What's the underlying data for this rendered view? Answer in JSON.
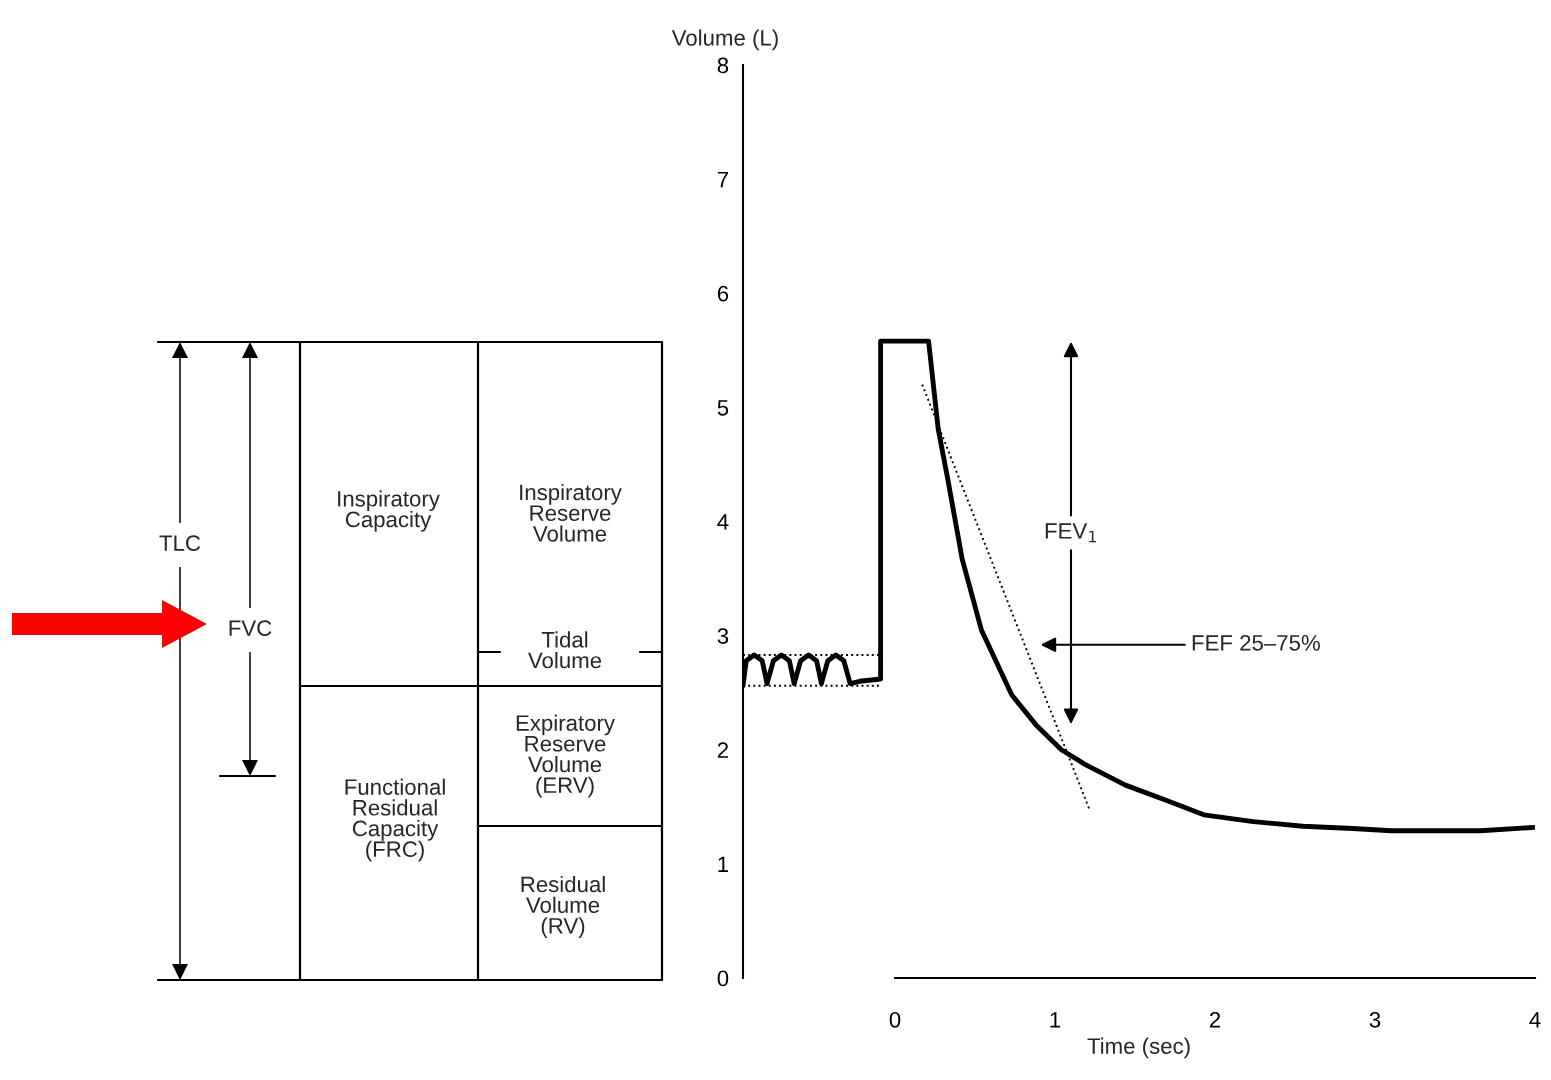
{
  "chart_data": [
    {
      "type": "other",
      "annotations": [
        "TLC",
        "FVC",
        "Inspiratory\nCapacity",
        "Inspiratory\nReserve\nVolume",
        "Tidal\nVolume",
        "Functional\nResidual\nCapacity\n(FRC)",
        "Expiratory\nReserve\nVolume\n(ERV)",
        "Residual\nVolume\n(RV)"
      ]
    },
    {
      "type": "line",
      "xlabel": "Time (sec)",
      "ylabel": "Volume (L)",
      "xlim": [
        -0.95,
        4
      ],
      "ylim": [
        0,
        8
      ],
      "xticks": [
        0,
        1,
        2,
        3,
        4
      ],
      "yticks": [
        0,
        1,
        2,
        3,
        4,
        5,
        6,
        7,
        8
      ],
      "grid": false,
      "series": [
        {
          "color": "#000000",
          "line_style": "solid",
          "x": [
            -0.95,
            -0.93,
            -0.88,
            -0.83,
            -0.8,
            -0.76,
            -0.71,
            -0.66,
            -0.63,
            -0.59,
            -0.54,
            -0.49,
            -0.46,
            -0.42,
            -0.37,
            -0.32,
            -0.28,
            -0.22,
            -0.09,
            -0.09,
            0.21,
            0.27,
            0.33,
            0.42,
            0.54,
            0.73,
            0.88,
            1.04,
            1.19,
            1.44,
            1.69,
            1.93,
            2.24,
            2.55,
            2.86,
            3.1,
            3.66,
            4.0
          ],
          "values": [
            2.56,
            2.78,
            2.83,
            2.78,
            2.58,
            2.78,
            2.83,
            2.78,
            2.58,
            2.78,
            2.83,
            2.78,
            2.58,
            2.78,
            2.83,
            2.78,
            2.58,
            2.6,
            2.62,
            5.58,
            5.58,
            4.81,
            4.37,
            3.67,
            3.05,
            2.48,
            2.22,
            2.0,
            1.87,
            1.69,
            1.56,
            1.43,
            1.37,
            1.33,
            1.31,
            1.29,
            1.29,
            1.32
          ]
        },
        {
          "color": "#000000",
          "line_style": "dotted",
          "x": [
            0.17,
            1.22
          ],
          "values": [
            5.2,
            1.46
          ]
        },
        {
          "color": "#000000",
          "line_style": "dotted",
          "x": [
            -0.95,
            -0.1
          ],
          "values": [
            2.83,
            2.83
          ]
        },
        {
          "color": "#000000",
          "line_style": "dotted",
          "x": [
            -0.95,
            -0.1
          ],
          "values": [
            2.56,
            2.56
          ]
        }
      ],
      "annotations": [
        "FEV$_{1}$",
        "FEF 25–75%"
      ]
    }
  ]
}
